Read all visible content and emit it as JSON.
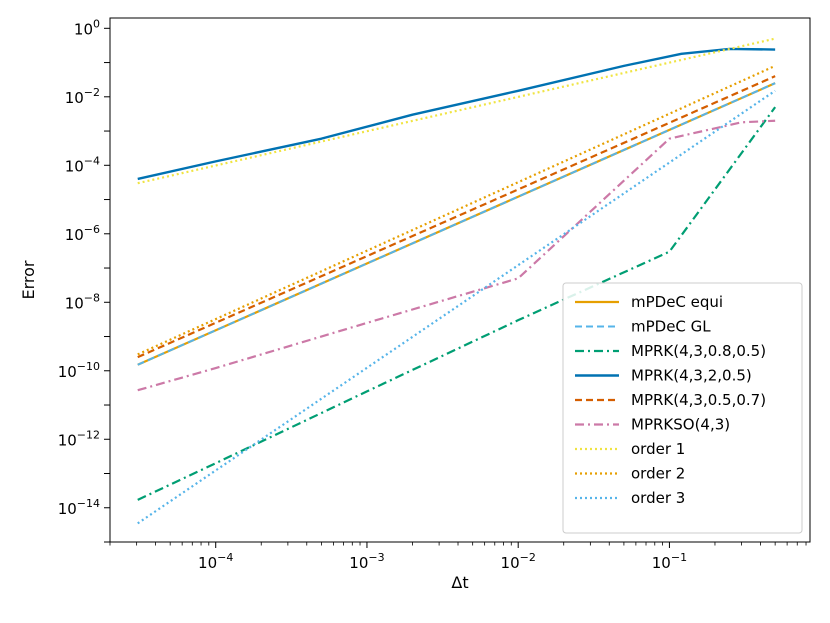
{
  "chart_data": {
    "type": "line",
    "xlabel": "Δt",
    "ylabel": "Error",
    "xscale": "log",
    "yscale": "log",
    "xlim": [
      2e-05,
      0.85
    ],
    "ylim": [
      1e-15,
      2.0
    ],
    "grid": false,
    "legend_position": "lower right",
    "x_ticks": [
      {
        "value": 0.0001,
        "base": "10",
        "exp": "−4"
      },
      {
        "value": 0.001,
        "base": "10",
        "exp": "−3"
      },
      {
        "value": 0.01,
        "base": "10",
        "exp": "−2"
      },
      {
        "value": 0.1,
        "base": "10",
        "exp": "−1"
      }
    ],
    "y_ticks": [
      {
        "value": 1e-14,
        "base": "10",
        "exp": "−14"
      },
      {
        "value": 1e-12,
        "base": "10",
        "exp": "−12"
      },
      {
        "value": 1e-10,
        "base": "10",
        "exp": "−10"
      },
      {
        "value": 1e-08,
        "base": "10",
        "exp": "−8"
      },
      {
        "value": 1e-06,
        "base": "10",
        "exp": "−6"
      },
      {
        "value": 0.0001,
        "base": "10",
        "exp": "−4"
      },
      {
        "value": 0.01,
        "base": "10",
        "exp": "−2"
      },
      {
        "value": 1,
        "base": "10",
        "exp": "0"
      }
    ],
    "series": [
      {
        "name": "mPDeC equi",
        "color": "#e69f00",
        "dash": "",
        "width": 2.2,
        "x": [
          3.05e-05,
          0.5
        ],
        "y": [
          1.5e-10,
          0.025
        ]
      },
      {
        "name": "mPDeC GL",
        "color": "#56b4e9",
        "dash": "7,4",
        "width": 2.0,
        "x": [
          3.05e-05,
          0.5
        ],
        "y": [
          1.5e-10,
          0.025
        ]
      },
      {
        "name": "MPRK(4,3,0.8,0.5)",
        "color": "#009e73",
        "dash": "9,4,2,4",
        "width": 2.2,
        "x": [
          3.05e-05,
          0.0001,
          0.001,
          0.01,
          0.1,
          0.5
        ],
        "y": [
          1.7e-14,
          2e-13,
          2.5e-11,
          3e-09,
          3e-07,
          0.005
        ]
      },
      {
        "name": "MPRK(4,3,2,0.5)",
        "color": "#0072b2",
        "dash": "",
        "width": 2.4,
        "x": [
          3.05e-05,
          0.0001,
          0.0005,
          0.002,
          0.01,
          0.05,
          0.12,
          0.25,
          0.5
        ],
        "y": [
          4e-05,
          0.00013,
          0.0006,
          0.003,
          0.015,
          0.08,
          0.18,
          0.25,
          0.24
        ]
      },
      {
        "name": "MPRK(4,3,0.5,0.7)",
        "color": "#d55e00",
        "dash": "7,4",
        "width": 2.2,
        "x": [
          3.05e-05,
          0.5
        ],
        "y": [
          2.5e-10,
          0.04
        ]
      },
      {
        "name": "MPRKSO(4,3)",
        "color": "#cc79a7",
        "dash": "9,4,2,4",
        "width": 2.2,
        "x": [
          3.05e-05,
          0.0001,
          0.001,
          0.01,
          0.1,
          0.3,
          0.5
        ],
        "y": [
          2.7e-11,
          1.2e-10,
          2.5e-09,
          5e-08,
          0.0006,
          0.0018,
          0.002
        ]
      },
      {
        "name": "order 1",
        "color": "#f0e442",
        "dash": "2,3",
        "width": 2.2,
        "x": [
          3.05e-05,
          0.5
        ],
        "y": [
          3e-05,
          0.5
        ]
      },
      {
        "name": "order 2",
        "color": "#e69f00",
        "dash": "2,3",
        "width": 2.2,
        "x": [
          3.05e-05,
          0.5
        ],
        "y": [
          3e-10,
          0.08
        ]
      },
      {
        "name": "order 3",
        "color": "#56b4e9",
        "dash": "2,3",
        "width": 2.2,
        "x": [
          3.05e-05,
          0.5
        ],
        "y": [
          3.5e-15,
          0.015
        ]
      }
    ]
  }
}
